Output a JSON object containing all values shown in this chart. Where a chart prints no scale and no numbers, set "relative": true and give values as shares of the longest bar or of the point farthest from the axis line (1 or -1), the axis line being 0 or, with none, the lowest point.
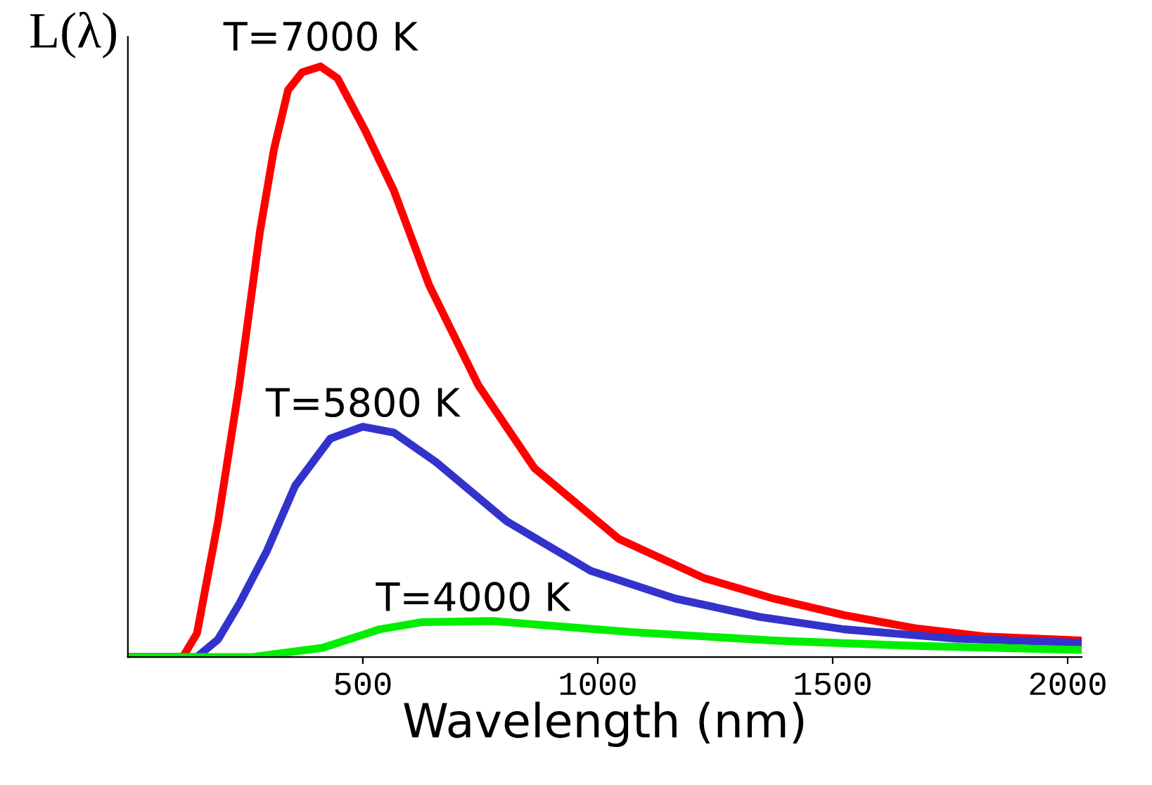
{
  "chart_data": {
    "type": "line",
    "relative": true,
    "xlabel": "Wavelength (nm)",
    "ylabel": "L(λ)",
    "xlim": [
      0,
      2030
    ],
    "xticks": [
      500,
      1000,
      1500,
      2000
    ],
    "grid": false,
    "legend": false,
    "series": [
      {
        "name": "T=7000 K",
        "color": "#ff0000",
        "x": [
          0,
          117,
          147,
          192,
          237,
          281,
          311,
          341,
          371,
          410,
          446,
          506,
          566,
          641,
          746,
          865,
          1045,
          1225,
          1374,
          1524,
          1674,
          1823,
          2030
        ],
        "values": [
          0,
          0,
          0.04,
          0.23,
          0.46,
          0.72,
          0.86,
          0.96,
          0.99,
          1.0,
          0.98,
          0.89,
          0.79,
          0.63,
          0.46,
          0.32,
          0.2,
          0.134,
          0.099,
          0.071,
          0.049,
          0.035,
          0.028
        ]
      },
      {
        "name": "T=5800 K",
        "color": "#3333cc",
        "x": [
          0,
          147,
          192,
          237,
          296,
          356,
          431,
          500,
          566,
          656,
          806,
          985,
          1165,
          1344,
          1524,
          1764,
          2030
        ],
        "values": [
          0,
          0,
          0.03,
          0.09,
          0.18,
          0.29,
          0.37,
          0.39,
          0.38,
          0.33,
          0.23,
          0.146,
          0.099,
          0.068,
          0.047,
          0.031,
          0.024
        ]
      },
      {
        "name": "T=4000 K",
        "color": "#00ee00",
        "x": [
          0,
          266,
          416,
          536,
          626,
          776,
          1075,
          1374,
          1674,
          2030
        ],
        "values": [
          0,
          0,
          0.016,
          0.047,
          0.059,
          0.061,
          0.042,
          0.028,
          0.019,
          0.012
        ]
      }
    ]
  }
}
